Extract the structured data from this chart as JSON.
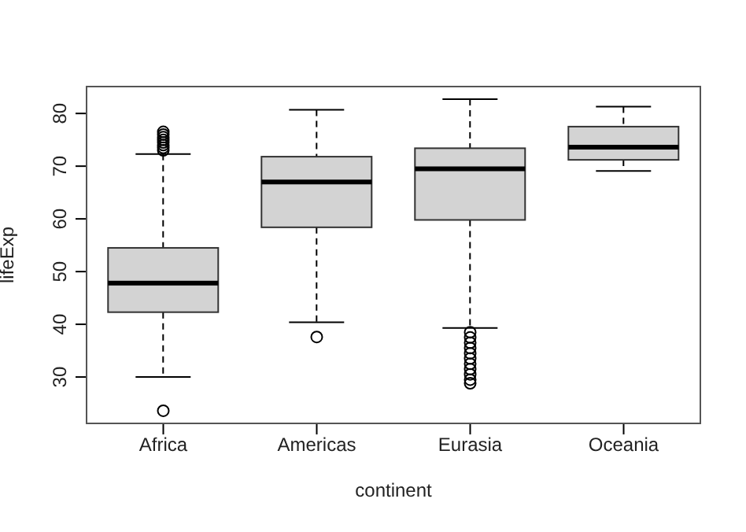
{
  "chart_data": {
    "type": "box",
    "xlabel": "continent",
    "ylabel": "lifeExp",
    "categories": [
      "Africa",
      "Americas",
      "Eurasia",
      "Oceania"
    ],
    "color": "#d3d3d3",
    "marker": "circle",
    "boxes": [
      {
        "low": 30.0,
        "q1": 42.3,
        "median": 47.8,
        "q3": 54.5,
        "high": 72.3,
        "outliers": [
          23.6,
          73.0,
          73.5,
          74.0,
          74.5,
          75.0,
          75.5,
          76.0,
          76.5
        ]
      },
      {
        "low": 40.4,
        "q1": 58.4,
        "median": 67.0,
        "q3": 71.8,
        "high": 80.7,
        "outliers": [
          37.6
        ]
      },
      {
        "low": 39.3,
        "q1": 59.8,
        "median": 69.5,
        "q3": 73.4,
        "high": 82.7,
        "outliers": [
          38.5,
          37.5,
          36.5,
          35.5,
          34.5,
          33.5,
          32.5,
          31.5,
          30.5,
          29.5,
          28.8
        ]
      },
      {
        "low": 69.1,
        "q1": 71.2,
        "median": 73.6,
        "q3": 77.5,
        "high": 81.3
      }
    ],
    "ylim": [
      21.2,
      85.1
    ],
    "yticks": [
      30,
      40,
      50,
      60,
      70,
      80
    ]
  }
}
